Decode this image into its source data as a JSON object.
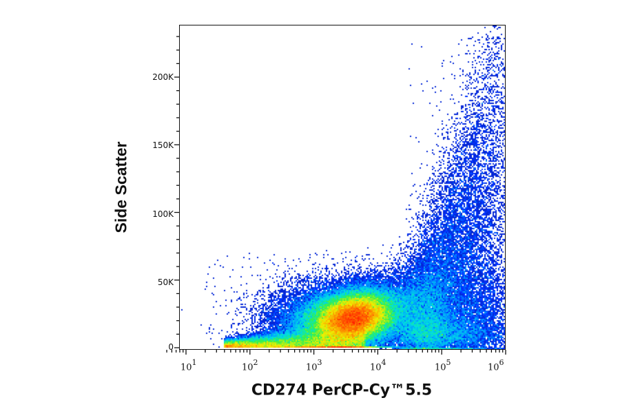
{
  "chart_data": {
    "type": "heatmap",
    "subtype": "flow-cytometry pseudocolor density dot plot",
    "title": "",
    "xlabel": "CD274 PerCP-Cy™5.5",
    "ylabel": "Side Scatter",
    "x_scale": "log",
    "xlim": [
      5,
      1200000
    ],
    "x_ticks": [
      {
        "value": 10,
        "label_base": "10",
        "label_exp": "1"
      },
      {
        "value": 100,
        "label_base": "10",
        "label_exp": "2"
      },
      {
        "value": 1000,
        "label_base": "10",
        "label_exp": "3"
      },
      {
        "value": 10000,
        "label_base": "10",
        "label_exp": "4"
      },
      {
        "value": 100000,
        "label_base": "10",
        "label_exp": "5"
      },
      {
        "value": 1000000,
        "label_base": "10",
        "label_exp": "6"
      }
    ],
    "y_scale": "linear",
    "ylim": [
      0,
      240000
    ],
    "y_ticks": [
      {
        "value": 0,
        "label": "0"
      },
      {
        "value": 50000,
        "label": "50K"
      },
      {
        "value": 100000,
        "label": "100K"
      },
      {
        "value": 150000,
        "label": "150K"
      },
      {
        "value": 200000,
        "label": "200K"
      }
    ],
    "y_minor_step": 10000,
    "color_scale": [
      "#0a1aa8",
      "#0033ff",
      "#00a0ff",
      "#00e0e0",
      "#30f050",
      "#f0f000",
      "#ff8000",
      "#ff1000"
    ],
    "populations": [
      {
        "name": "main-population",
        "x_center": 4500,
        "y_center": 24000,
        "x_spread_decades": 0.55,
        "y_spread": 12000,
        "peak_density": "red"
      },
      {
        "name": "low-tail",
        "x_range": [
          30,
          3000
        ],
        "y_range": [
          0,
          15000
        ],
        "peak_density": "cyan"
      },
      {
        "name": "high-positive-tail",
        "x_range": [
          30000,
          1000000
        ],
        "y_range": [
          0,
          240000
        ],
        "peak_density": "blue"
      }
    ],
    "grid": false,
    "legend": null
  },
  "axes": {
    "x_label": "CD274 PerCP-Cy™5.5",
    "y_label": "Side Scatter",
    "y_ticks": [
      "0",
      "50K",
      "100K",
      "150K",
      "200K"
    ],
    "x_ticks_base": [
      "10",
      "10",
      "10",
      "10",
      "10",
      "10"
    ],
    "x_ticks_exp": [
      "1",
      "2",
      "3",
      "4",
      "5",
      "6"
    ]
  }
}
